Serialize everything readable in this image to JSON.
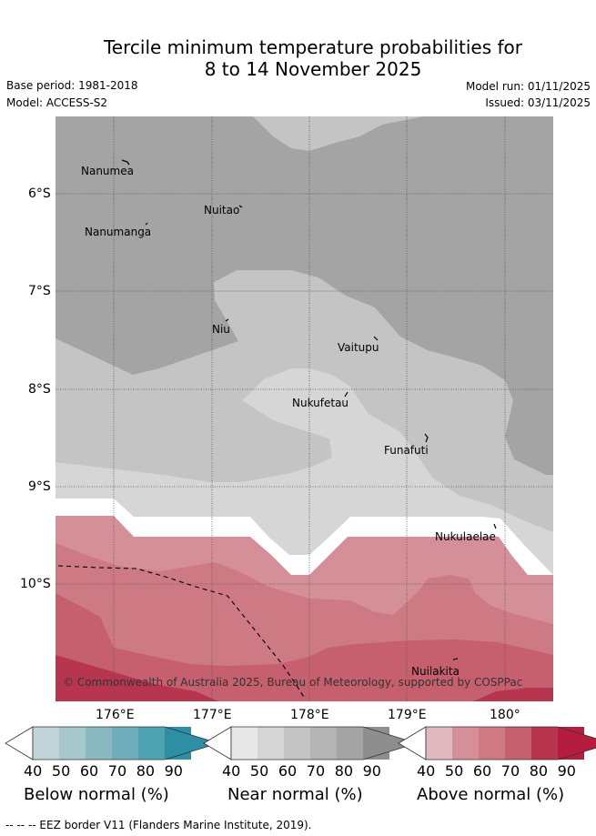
{
  "header": {
    "title_line1": "Tercile minimum temperature probabilities for",
    "title_line2": "8 to 14 November 2025",
    "base_period": "Base period: 1981-2018",
    "model": "Model: ACCESS-S2",
    "model_run": "Model run: 01/11/2025",
    "issued": "Issued: 03/11/2025"
  },
  "map": {
    "lat_ticks": [
      "6°S",
      "7°S",
      "8°S",
      "9°S",
      "10°S"
    ],
    "lon_ticks": [
      "176°E",
      "177°E",
      "178°E",
      "179°E",
      "180°"
    ],
    "places": [
      "Nanumea",
      "Nuitao",
      "Nanumanga",
      "Niu",
      "Vaitupu",
      "Nukufetau",
      "Funafuti",
      "Nukulaelae",
      "Nuilakita"
    ],
    "copyright": "© Commonwealth of Australia 2025, Bureau of Meteorology, supported by COSPPac"
  },
  "colorbars": [
    {
      "title": "Below normal (%)",
      "labels": [
        "40",
        "50",
        "60",
        "70",
        "80",
        "90"
      ],
      "colors": [
        "#c0d4da",
        "#a6c7cc",
        "#8bb9c2",
        "#6fadbc",
        "#4ea3b1",
        "#2e8ea4"
      ]
    },
    {
      "title": "Near normal (%)",
      "labels": [
        "40",
        "50",
        "60",
        "70",
        "80",
        "90"
      ],
      "colors": [
        "#e8e8e8",
        "#d6d6d6",
        "#c4c4c4",
        "#b4b4b4",
        "#a4a4a4",
        "#8e8e8e"
      ]
    },
    {
      "title": "Above normal (%)",
      "labels": [
        "40",
        "50",
        "60",
        "70",
        "80",
        "90"
      ],
      "colors": [
        "#e0b8be",
        "#d58f98",
        "#cd7a85",
        "#c65f6e",
        "#b83550",
        "#b51c3d"
      ]
    }
  ],
  "footnote": "--  --  -- EEZ border V11 (Flanders Marine Institute, 2019)."
}
